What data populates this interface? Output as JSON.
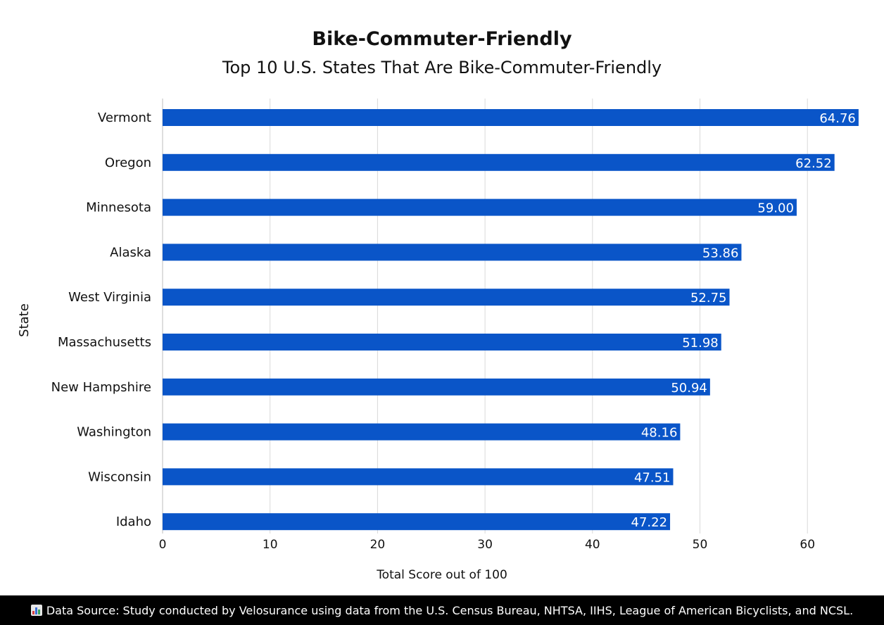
{
  "chart_data": {
    "type": "bar",
    "orientation": "horizontal",
    "title": "Bike-Commuter-Friendly",
    "subtitle": "Top 10 U.S. States That Are Bike-Commuter-Friendly",
    "xlabel": "Total Score out of 100",
    "ylabel": "State",
    "xlim": [
      0,
      65
    ],
    "xticks": [
      0,
      10,
      20,
      30,
      40,
      50,
      60
    ],
    "grid": true,
    "categories": [
      "Vermont",
      "Oregon",
      "Minnesota",
      "Alaska",
      "West Virginia",
      "Massachusetts",
      "New Hampshire",
      "Washington",
      "Wisconsin",
      "Idaho"
    ],
    "values": [
      64.76,
      62.52,
      59.0,
      53.86,
      52.75,
      51.98,
      50.94,
      48.16,
      47.51,
      47.22
    ],
    "value_labels": [
      "64.76",
      "62.52",
      "59.00",
      "53.86",
      "52.75",
      "51.98",
      "50.94",
      "48.16",
      "47.51",
      "47.22"
    ],
    "bar_color": "#0a55c8",
    "label_color": "#ffffff",
    "grid_color": "#d9d9d9"
  },
  "footer": {
    "icon": "bar-chart-icon",
    "text": "Data Source: Study conducted by Velosurance using data from the U.S. Census Bureau, NHTSA, IIHS, League of American Bicyclists, and NCSL."
  }
}
